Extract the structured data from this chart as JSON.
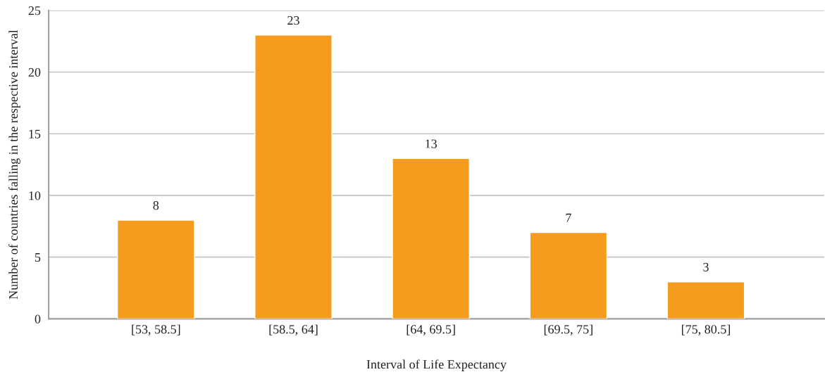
{
  "chart_data": {
    "type": "bar",
    "categories": [
      "[53, 58.5]",
      "[58.5, 64]",
      "[64, 69.5]",
      "[69.5, 75]",
      "[75, 80.5]"
    ],
    "values": [
      8,
      23,
      13,
      7,
      3
    ],
    "color": "#f59c1f",
    "xlabel": "Interval of Life Expectancy",
    "ylabel": "Number of countries falling in the respective interval",
    "ylim": [
      0,
      25
    ],
    "yticks": [
      0,
      5,
      10,
      15,
      20,
      25
    ],
    "grid": "y",
    "data_labels": true
  }
}
